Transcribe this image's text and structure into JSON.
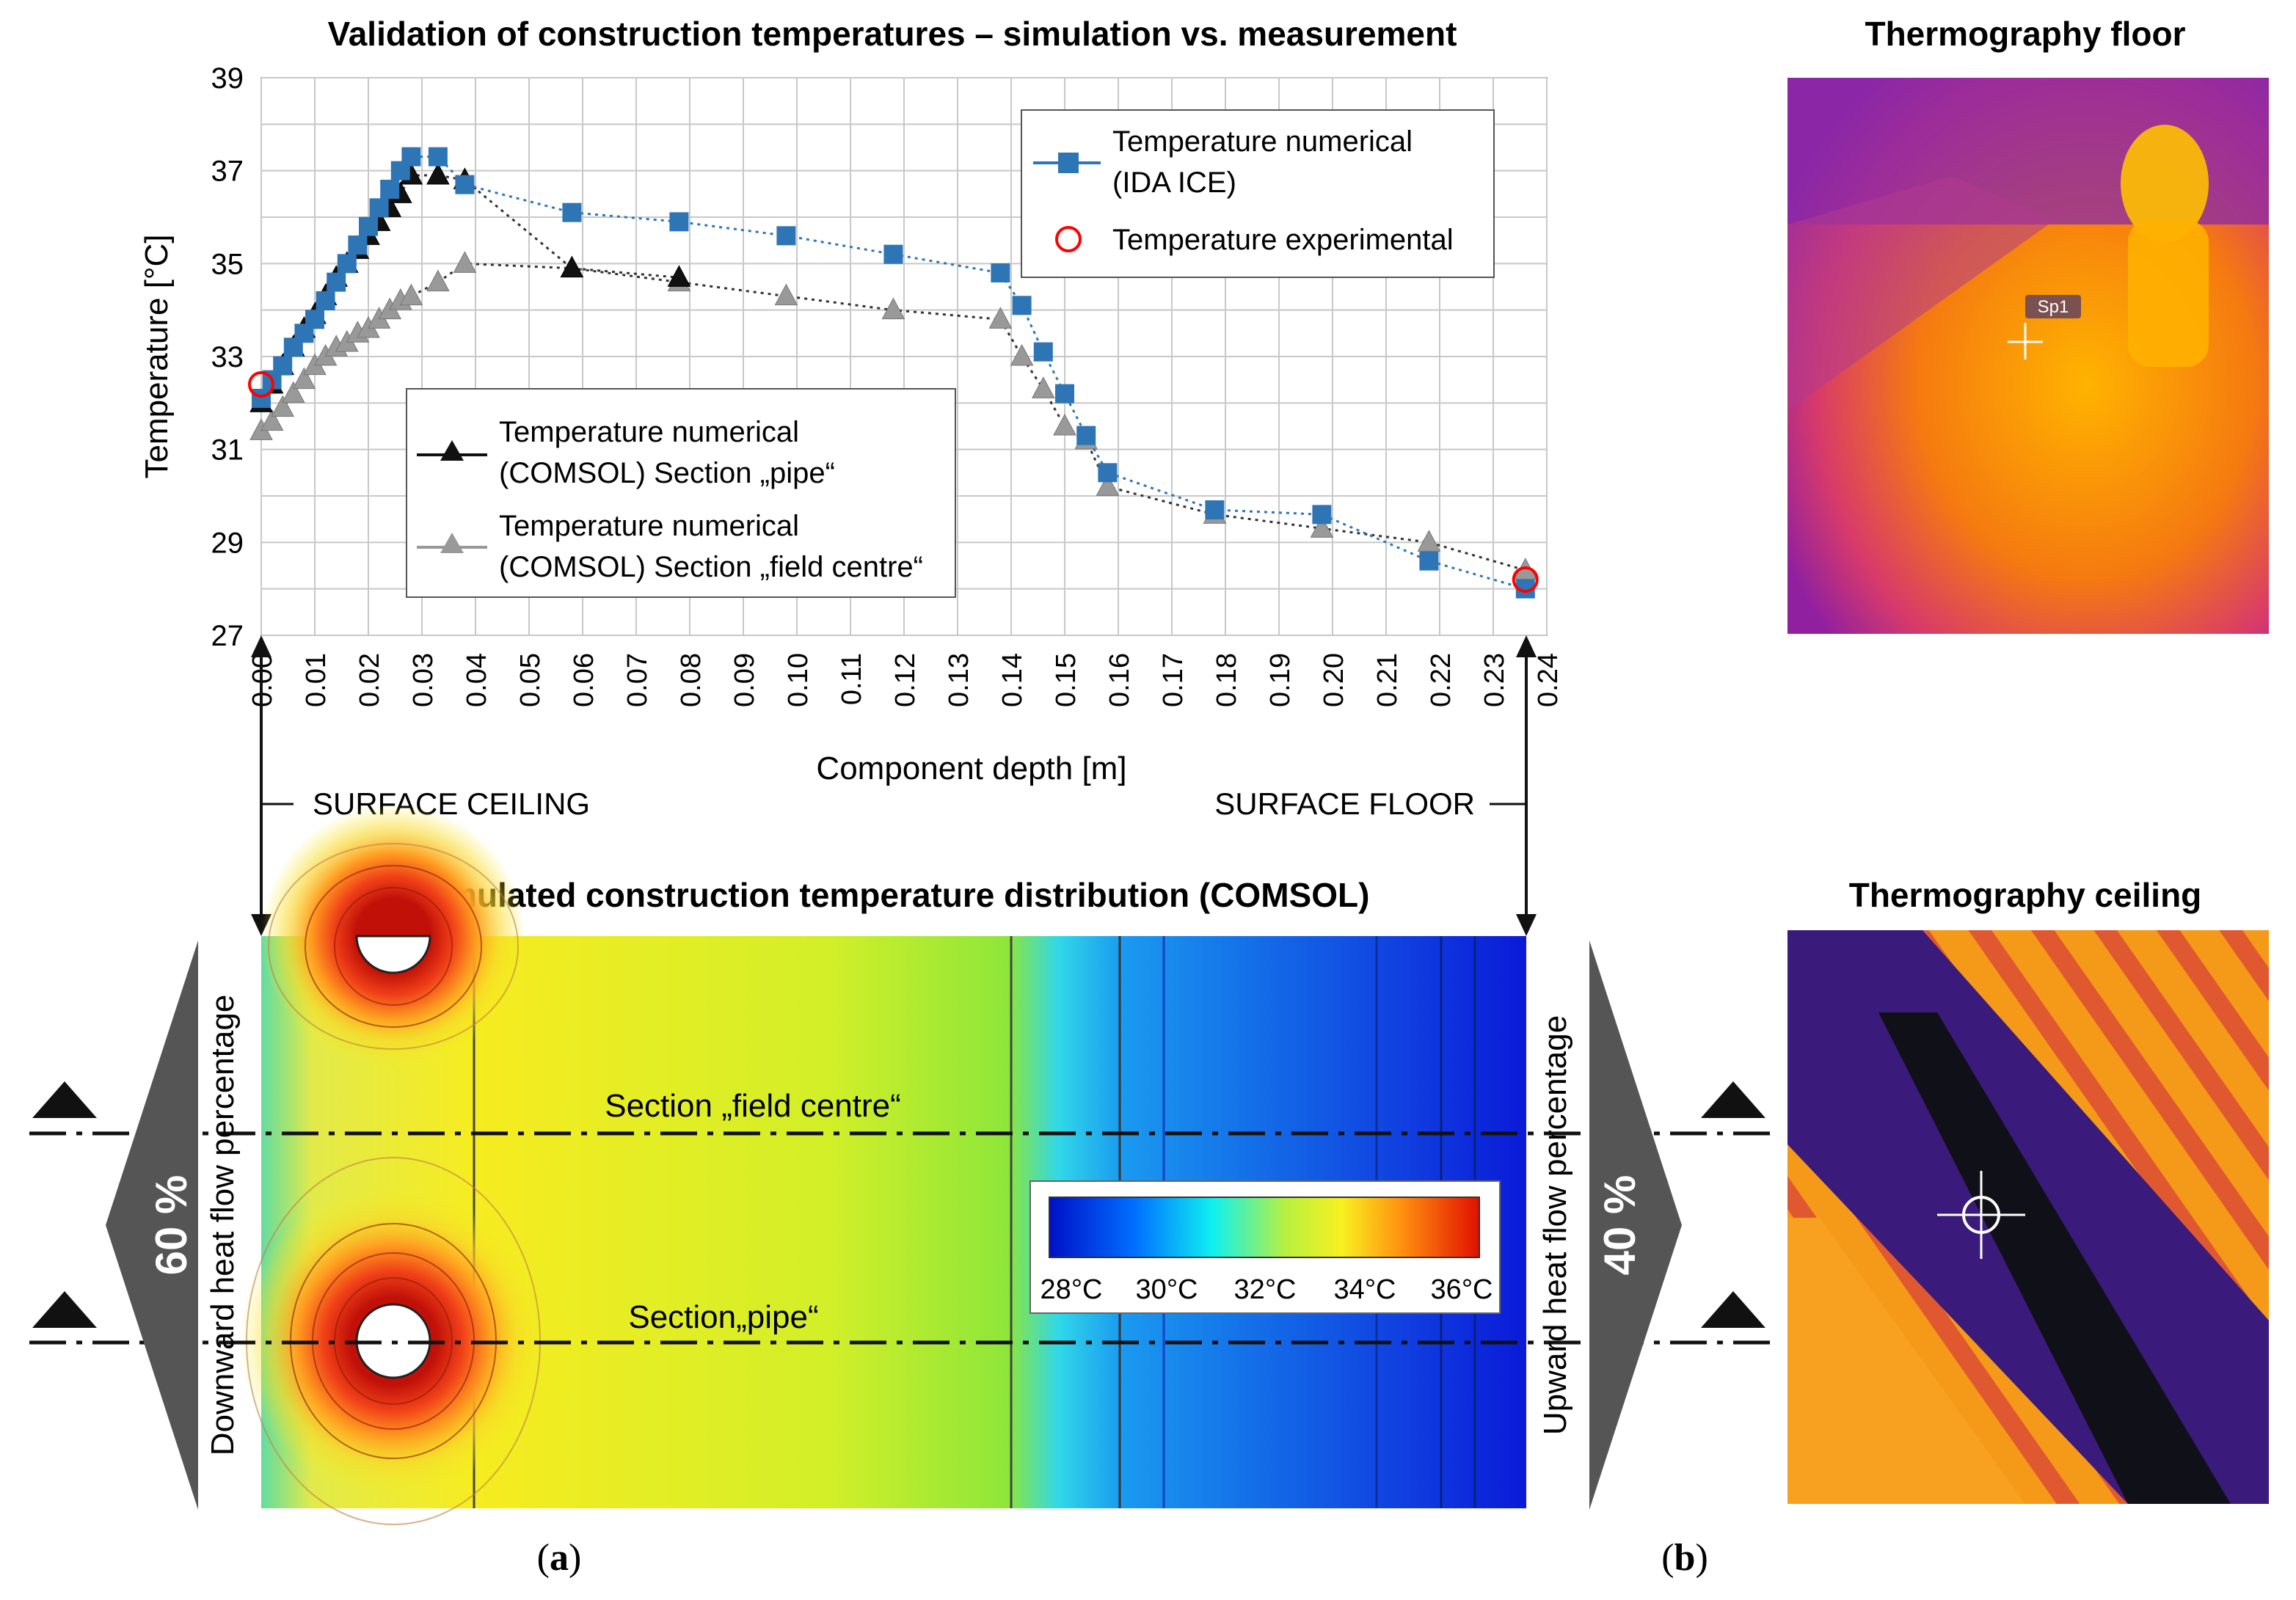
{
  "titles": {
    "chart": "Validation of construction temperatures – simulation vs. measurement",
    "distribution": "Simulated construction temperature distribution (COMSOL)",
    "floor": "Thermography floor",
    "ceiling": "Thermography ceiling"
  },
  "panel_labels": {
    "a": "a",
    "b": "b"
  },
  "chart_data": {
    "type": "line",
    "title": "Validation of construction temperatures – simulation vs. measurement",
    "xlabel": "Component depth [m]",
    "ylabel": "Temperature [°C]",
    "xlim": [
      0,
      0.24
    ],
    "ylim": [
      27,
      39
    ],
    "x_ticks": [
      "0.00",
      "0.01",
      "0.02",
      "0.03",
      "0.04",
      "0.05",
      "0.06",
      "0.07",
      "0.08",
      "0.09",
      "0.10",
      "0.11",
      "0.12",
      "0.13",
      "0.14",
      "0.15",
      "0.16",
      "0.17",
      "0.18",
      "0.19",
      "0.20",
      "0.21",
      "0.22",
      "0.23",
      "0.24"
    ],
    "y_ticks": [
      "27",
      "29",
      "31",
      "33",
      "35",
      "37",
      "39"
    ],
    "grid": true,
    "series": [
      {
        "name": "Temperature numerical (IDA ICE)",
        "legend_lines": [
          "Temperature numerical",
          "(IDA ICE)"
        ],
        "color": "#2e75b6",
        "marker": "square",
        "x": [
          0.0,
          0.002,
          0.004,
          0.006,
          0.008,
          0.01,
          0.012,
          0.014,
          0.016,
          0.018,
          0.02,
          0.022,
          0.024,
          0.026,
          0.028,
          0.033,
          0.038,
          0.058,
          0.078,
          0.098,
          0.118,
          0.138,
          0.142,
          0.146,
          0.15,
          0.154,
          0.158,
          0.178,
          0.198,
          0.218,
          0.236
        ],
        "y": [
          32.1,
          32.5,
          32.8,
          33.2,
          33.5,
          33.8,
          34.2,
          34.6,
          35.0,
          35.4,
          35.8,
          36.2,
          36.6,
          37.0,
          37.3,
          37.3,
          36.7,
          36.1,
          35.9,
          35.6,
          35.2,
          34.8,
          34.1,
          33.1,
          32.2,
          31.3,
          30.5,
          29.7,
          29.6,
          28.6,
          28.0
        ]
      },
      {
        "name": "Temperature numerical (COMSOL) Section „pipe“",
        "legend_lines": [
          "Temperature numerical",
          "(COMSOL) Section „pipe“"
        ],
        "color": "#111111",
        "marker": "triangle",
        "x": [
          0.0,
          0.002,
          0.004,
          0.006,
          0.008,
          0.01,
          0.012,
          0.014,
          0.016,
          0.018,
          0.02,
          0.022,
          0.024,
          0.026,
          0.028,
          0.033,
          0.038,
          0.058,
          0.078
        ],
        "y": [
          32.0,
          32.4,
          32.8,
          33.2,
          33.6,
          33.9,
          34.3,
          34.7,
          35.0,
          35.3,
          35.6,
          35.9,
          36.2,
          36.5,
          36.9,
          36.9,
          36.8,
          34.9,
          34.7
        ]
      },
      {
        "name": "Temperature numerical (COMSOL) Section „field centre“",
        "legend_lines": [
          "Temperature numerical",
          "(COMSOL) Section „field centre“"
        ],
        "color": "#999999",
        "marker": "triangle",
        "x": [
          0.0,
          0.002,
          0.004,
          0.006,
          0.008,
          0.01,
          0.012,
          0.014,
          0.016,
          0.018,
          0.02,
          0.022,
          0.024,
          0.026,
          0.028,
          0.033,
          0.038,
          0.058,
          0.078,
          0.098,
          0.118,
          0.138,
          0.142,
          0.146,
          0.15,
          0.154,
          0.158,
          0.178,
          0.198,
          0.218,
          0.236
        ],
        "y": [
          31.4,
          31.6,
          31.9,
          32.2,
          32.5,
          32.8,
          33.0,
          33.2,
          33.3,
          33.5,
          33.6,
          33.8,
          34.0,
          34.2,
          34.3,
          34.6,
          35.0,
          34.9,
          34.6,
          34.3,
          34.0,
          33.8,
          33.0,
          32.3,
          31.5,
          31.2,
          30.2,
          29.6,
          29.3,
          29.0,
          28.4
        ]
      },
      {
        "name": "Temperature experimental",
        "legend_lines": [
          "Temperature experimental"
        ],
        "color": "#ff0000",
        "marker": "circle",
        "x": [
          0.0,
          0.236
        ],
        "y": [
          32.4,
          28.2
        ]
      }
    ],
    "annotations": {
      "surface_ceiling": "SURFACE CEILING",
      "surface_floor": "SURFACE FLOOR"
    }
  },
  "distribution": {
    "section_field_centre": "Section „field centre“",
    "section_pipe": "Section„pipe“",
    "left_label": "Downward heat flow percentage",
    "left_percent": "60 %",
    "right_label": "Upward heat flow percentage",
    "right_percent": "40 %",
    "colorbar_ticks": [
      "28°C",
      "30°C",
      "32°C",
      "34°C",
      "36°C"
    ],
    "colors": {
      "cold": "#0018e8",
      "hot": "#e8200a",
      "mid": "#d8ee20"
    }
  },
  "thermography": {
    "marker_label": "Sp1"
  }
}
